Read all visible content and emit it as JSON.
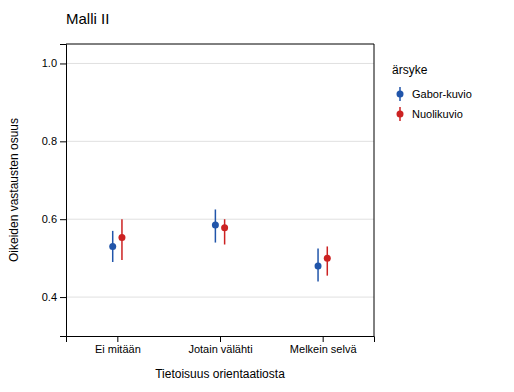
{
  "chart_data": {
    "type": "errorbar",
    "title": "Malli II",
    "xlabel": "Tietoisuus orientaatiosta",
    "ylabel": "Oikeiden vastausten osuus",
    "categories": [
      "Ei mitään",
      "Jotain välähti",
      "Melkein selvä"
    ],
    "series": [
      {
        "name": "Gabor-kuvio",
        "color": "#2155AA",
        "values": [
          0.53,
          0.585,
          0.48
        ],
        "lower": [
          0.49,
          0.54,
          0.44
        ],
        "upper": [
          0.57,
          0.625,
          0.525
        ]
      },
      {
        "name": "Nuolikuvio",
        "color": "#CC2222",
        "values": [
          0.553,
          0.578,
          0.5
        ],
        "lower": [
          0.495,
          0.535,
          0.455
        ],
        "upper": [
          0.6,
          0.6,
          0.53
        ]
      }
    ],
    "legend_title": "ärsyke",
    "legend": "right",
    "ylim": [
      0.3,
      1.05
    ],
    "yticks": [
      0.4,
      0.6,
      0.8,
      {
        "value": 1.0,
        "label": "1.0"
      }
    ],
    "grid": true
  }
}
